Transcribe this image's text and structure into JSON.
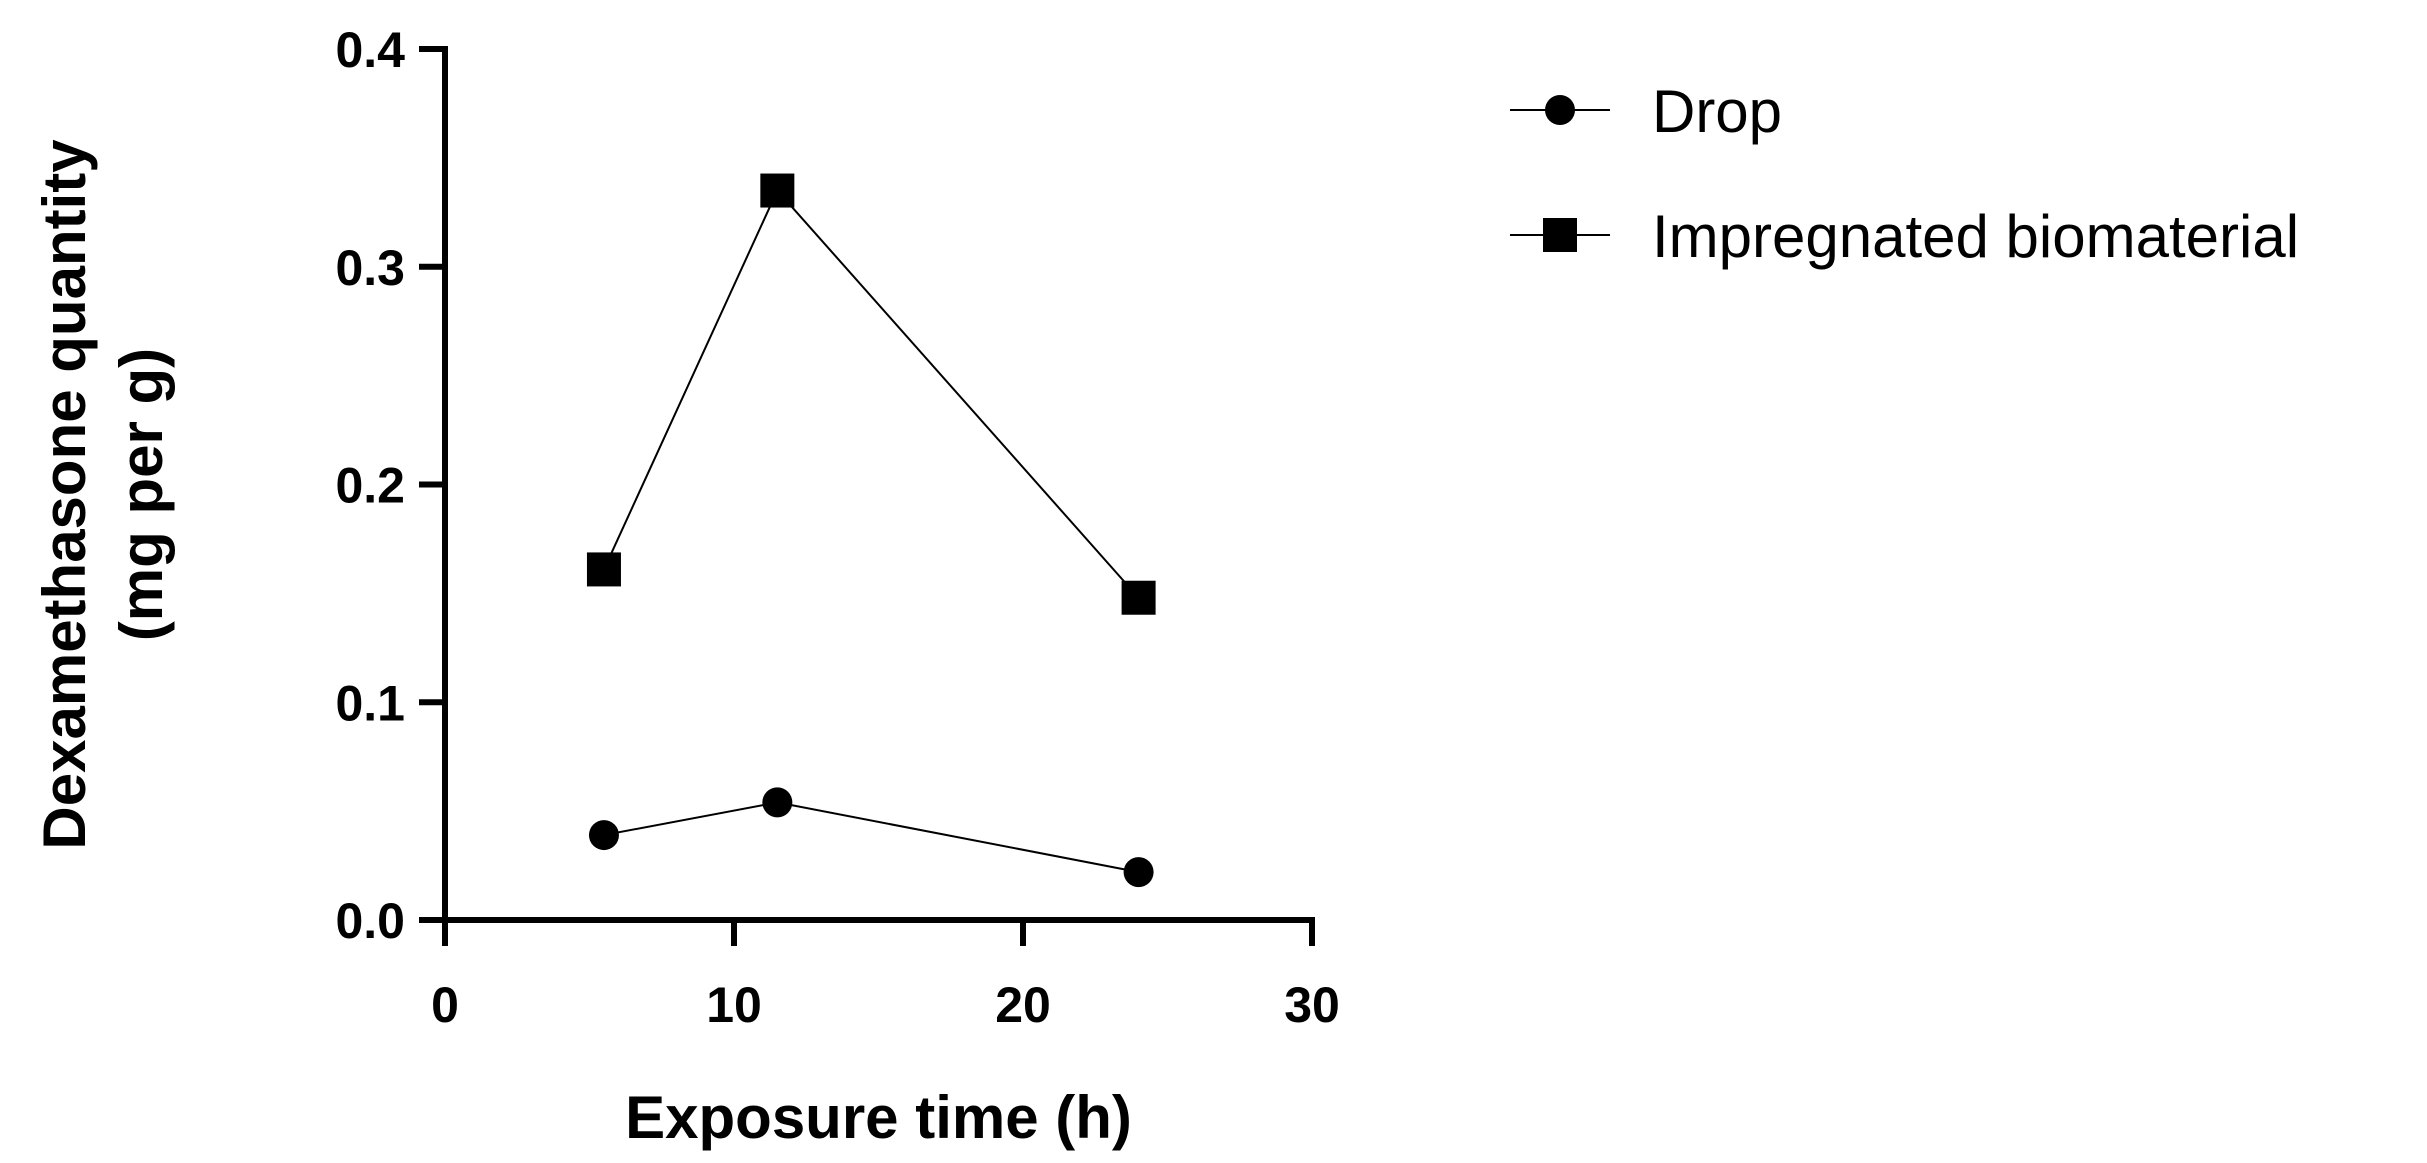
{
  "chart_data": {
    "type": "line",
    "title": "",
    "xlabel": "Exposure time (h)",
    "ylabel_lines": [
      "Dexamethasone quantity",
      "(mg per g)"
    ],
    "xlim": [
      0,
      30
    ],
    "ylim": [
      0.0,
      0.4
    ],
    "x_ticks": [
      0,
      10,
      20,
      30
    ],
    "x_tick_labels": [
      "0",
      "10",
      "20",
      "30"
    ],
    "y_ticks": [
      0.0,
      0.1,
      0.2,
      0.3,
      0.4
    ],
    "y_tick_labels": [
      "0.0",
      "0.1",
      "0.2",
      "0.3",
      "0.4"
    ],
    "grid": false,
    "legend_position": "top-right outside plot",
    "series": [
      {
        "name": "Drop",
        "marker": "circle",
        "color": "#000000",
        "points": [
          {
            "x": 5.5,
            "y": 0.039
          },
          {
            "x": 11.5,
            "y": 0.054
          },
          {
            "x": 24,
            "y": 0.022
          }
        ]
      },
      {
        "name": "Impregnated biomaterial",
        "marker": "square",
        "color": "#000000",
        "points": [
          {
            "x": 5.5,
            "y": 0.161
          },
          {
            "x": 11.5,
            "y": 0.335
          },
          {
            "x": 24,
            "y": 0.148
          }
        ]
      }
    ]
  }
}
